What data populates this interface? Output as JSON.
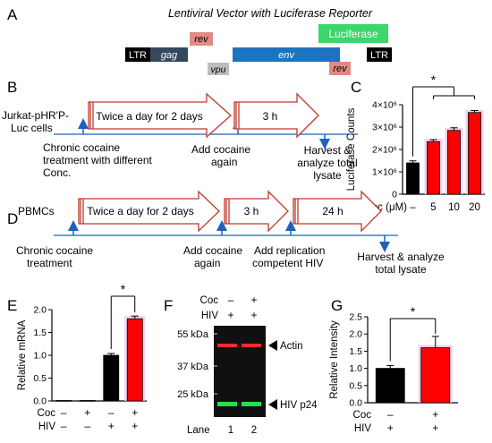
{
  "panels": {
    "a": "A",
    "b": "B",
    "c": "C",
    "d": "D",
    "e": "E",
    "f": "F",
    "g": "G"
  },
  "vector": {
    "title": "Lentiviral Vector with Luciferase Reporter",
    "ltr_left": "LTR",
    "gag": "gag",
    "rev_top": "rev",
    "vpu": "vpu",
    "env": "env",
    "luciferase": "Luciferase",
    "rev_bottom": "rev",
    "ltr_right": "LTR",
    "colors": {
      "ltr": "#000000",
      "gag": "#34495e",
      "rev": "#e08a86",
      "vpu": "#bdbdbd",
      "env": "#1a74bf",
      "luciferase": "#3dd66b"
    }
  },
  "panel_b": {
    "cells_line1": "Jurkat-pHR'P-",
    "cells_line2": "Luc cells",
    "step1": "Twice a day for 2 days",
    "step2": "3 h",
    "chronic_line1": "Chronic cocaine",
    "chronic_line2": "treatment with different",
    "chronic_line3": "Conc.",
    "add_line1": "Add cocaine",
    "add_line2": "again",
    "harvest_line1": "Harvest &",
    "harvest_line2": "analyze total",
    "harvest_line3": "lysate"
  },
  "panel_d": {
    "cells": "PBMCs",
    "step1": "Twice a day for 2 days",
    "step2": "3 h",
    "step3": "24 h",
    "chronic_line1": "Chronic cocaine",
    "chronic_line2": "treatment",
    "add_line1": "Add cocaine",
    "add_line2": "again",
    "repl_line1": "Add replication",
    "repl_line2": "competent HIV",
    "harvest_line1": "Harvest & analyze",
    "harvest_line2": "total lysate"
  },
  "chart_data": [
    {
      "panel": "C",
      "type": "bar",
      "ylabel": "Luciferase Counts",
      "xlabel": "Coc (μM)",
      "categories": [
        "–",
        "5",
        "10",
        "20"
      ],
      "values": [
        1400000,
        2350000,
        2850000,
        3650000
      ],
      "errors": [
        90000,
        90000,
        120000,
        90000
      ],
      "colors": [
        "#000000",
        "#ff0000",
        "#ff0000",
        "#ff0000"
      ],
      "ylim": [
        0,
        4000000
      ],
      "yticks": [
        {
          "v": 0,
          "label": "0"
        },
        {
          "v": 1000000,
          "label": "1×10⁶"
        },
        {
          "v": 2000000,
          "label": "2×10⁶"
        },
        {
          "v": 3000000,
          "label": "3×10⁶"
        },
        {
          "v": 4000000,
          "label": "4×10⁶"
        }
      ],
      "significance": "*"
    },
    {
      "panel": "E",
      "type": "bar",
      "ylabel": "Relative mRNA",
      "row_labels": [
        "Coc",
        "HIV"
      ],
      "categories": [
        [
          "–",
          "–"
        ],
        [
          "+",
          "–"
        ],
        [
          "–",
          "+"
        ],
        [
          "+",
          "+"
        ]
      ],
      "values": [
        0.01,
        0.01,
        1.0,
        1.8
      ],
      "errors": [
        0.0,
        0.0,
        0.04,
        0.06
      ],
      "colors": [
        "#000000",
        "#000000",
        "#000000",
        "#ff0000"
      ],
      "ylim": [
        0,
        2.0
      ],
      "yticks": [
        {
          "v": 0,
          "label": "0.0"
        },
        {
          "v": 0.5,
          "label": "0.5"
        },
        {
          "v": 1.0,
          "label": "1.0"
        },
        {
          "v": 1.5,
          "label": "1.5"
        },
        {
          "v": 2.0,
          "label": "2.0"
        }
      ],
      "significance": "*"
    },
    {
      "panel": "G",
      "type": "bar",
      "ylabel": "Relative Intensity",
      "row_labels": [
        "Coc",
        "HIV"
      ],
      "categories": [
        [
          "–",
          "+"
        ],
        [
          "+",
          "+"
        ]
      ],
      "values": [
        1.0,
        1.6
      ],
      "errors": [
        0.08,
        0.33
      ],
      "colors": [
        "#000000",
        "#ff0000"
      ],
      "ylim": [
        0,
        2.5
      ],
      "yticks": [
        {
          "v": 0,
          "label": "0.0"
        },
        {
          "v": 0.5,
          "label": "0.5"
        },
        {
          "v": 1.0,
          "label": "1.0"
        },
        {
          "v": 1.5,
          "label": "1.5"
        },
        {
          "v": 2.0,
          "label": "2.0"
        },
        {
          "v": 2.5,
          "label": "2.5"
        }
      ],
      "significance": "*"
    }
  ],
  "blot": {
    "coc_label": "Coc",
    "hiv_label": "HIV",
    "coc_values": [
      "–",
      "+"
    ],
    "hiv_values": [
      "+",
      "+"
    ],
    "mw": [
      "55 kDa",
      "37 kDa",
      "25 kDa"
    ],
    "bands": [
      "Actin",
      "HIV p24"
    ],
    "lane_label": "Lane",
    "lanes": [
      "1",
      "2"
    ]
  }
}
